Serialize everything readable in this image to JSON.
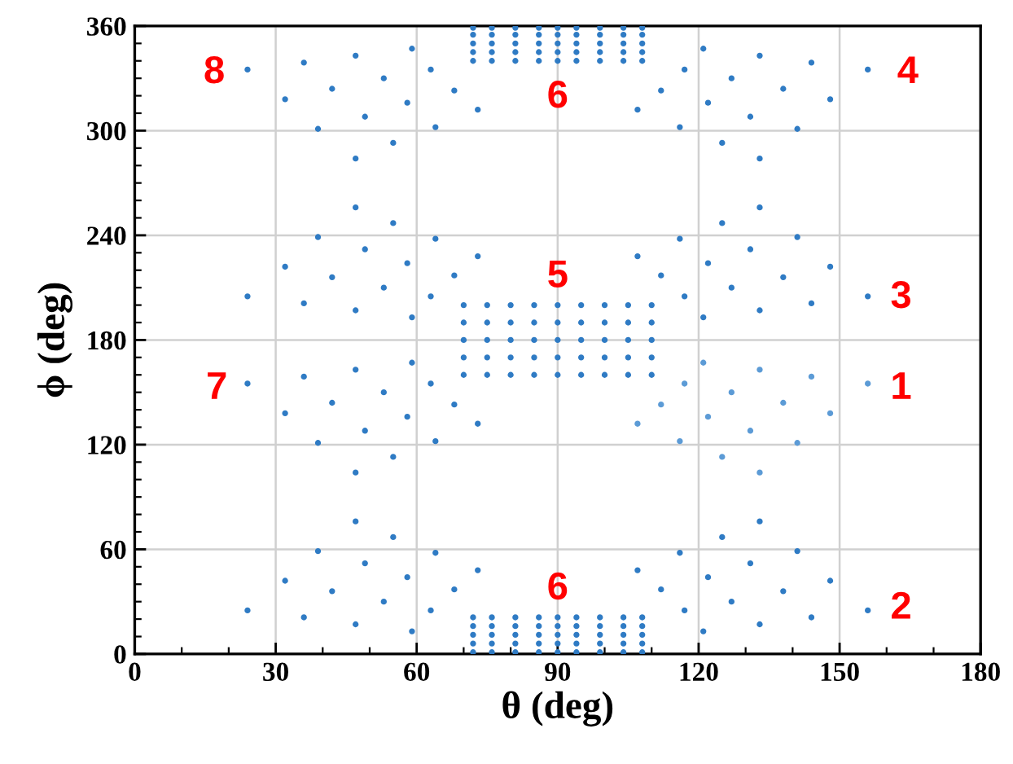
{
  "chart_data": {
    "type": "scatter",
    "xlabel": "θ (deg)",
    "ylabel": "ϕ (deg)",
    "xlim": [
      0,
      180
    ],
    "ylim": [
      0,
      360
    ],
    "xticks": [
      0,
      {
        "value": 10,
        "label": null
      },
      {
        "value": 20,
        "label": null
      },
      30,
      {
        "value": 40,
        "label": null
      },
      {
        "value": 50,
        "label": null
      },
      60,
      {
        "value": 70,
        "label": null
      },
      {
        "value": 80,
        "label": null
      },
      90,
      {
        "value": 100,
        "label": null
      },
      {
        "value": 110,
        "label": null
      },
      120,
      {
        "value": 130,
        "label": null
      },
      {
        "value": 140,
        "label": null
      },
      150,
      {
        "value": 160,
        "label": null
      },
      {
        "value": 170,
        "label": null
      },
      180
    ],
    "yticks": [
      0,
      {
        "value": 10,
        "label": null
      },
      {
        "value": 20,
        "label": null
      },
      {
        "value": 30,
        "label": null
      },
      {
        "value": 40,
        "label": null
      },
      {
        "value": 50,
        "label": null
      },
      60,
      {
        "value": 70,
        "label": null
      },
      {
        "value": 80,
        "label": null
      },
      {
        "value": 90,
        "label": null
      },
      {
        "value": 100,
        "label": null
      },
      {
        "value": 110,
        "label": null
      },
      120,
      {
        "value": 130,
        "label": null
      },
      {
        "value": 140,
        "label": null
      },
      {
        "value": 150,
        "label": null
      },
      {
        "value": 160,
        "label": null
      },
      {
        "value": 170,
        "label": null
      },
      180,
      {
        "value": 190,
        "label": null
      },
      {
        "value": 200,
        "label": null
      },
      {
        "value": 210,
        "label": null
      },
      {
        "value": 220,
        "label": null
      },
      {
        "value": 230,
        "label": null
      },
      240,
      {
        "value": 250,
        "label": null
      },
      {
        "value": 260,
        "label": null
      },
      {
        "value": 270,
        "label": null
      },
      {
        "value": 280,
        "label": null
      },
      {
        "value": 290,
        "label": null
      },
      300,
      {
        "value": 310,
        "label": null
      },
      {
        "value": 320,
        "label": null
      },
      {
        "value": 330,
        "label": null
      },
      {
        "value": 340,
        "label": null
      },
      {
        "value": 350,
        "label": null
      },
      360
    ],
    "grid": true,
    "legend": false,
    "marker": "circle",
    "series": [
      {
        "color": "#2f7bc4",
        "x": [
          24,
          36,
          47,
          59,
          32,
          42,
          53,
          63,
          39,
          49,
          58,
          68,
          47,
          55,
          64,
          73
        ],
        "values": [
          335,
          339,
          343,
          347,
          318,
          324,
          330,
          335,
          301,
          308,
          316,
          323,
          284,
          293,
          302,
          312
        ]
      },
      {
        "color": "#2f7bc4",
        "x": [
          24,
          36,
          47,
          59,
          32,
          42,
          53,
          63,
          39,
          49,
          58,
          68,
          47,
          55,
          64,
          73
        ],
        "values": [
          205,
          201,
          197,
          193,
          222,
          216,
          210,
          205,
          239,
          232,
          224,
          217,
          256,
          247,
          238,
          228
        ]
      },
      {
        "color": "#2f7bc4",
        "x": [
          24,
          36,
          47,
          59,
          32,
          42,
          53,
          63,
          39,
          49,
          58,
          68,
          47,
          55,
          64,
          73
        ],
        "values": [
          155,
          159,
          163,
          167,
          138,
          144,
          150,
          155,
          121,
          128,
          136,
          143,
          104,
          113,
          122,
          132
        ]
      },
      {
        "color": "#2f7bc4",
        "x": [
          24,
          36,
          47,
          59,
          32,
          42,
          53,
          63,
          39,
          49,
          58,
          68,
          47,
          55,
          64,
          73
        ],
        "values": [
          25,
          21,
          17,
          13,
          42,
          36,
          30,
          25,
          59,
          52,
          44,
          37,
          76,
          67,
          58,
          48
        ]
      },
      {
        "color": "#2f7bc4",
        "x": [
          156,
          144,
          133,
          121,
          148,
          138,
          127,
          117,
          141,
          131,
          122,
          112,
          133,
          125,
          116,
          107
        ],
        "values": [
          335,
          339,
          343,
          347,
          318,
          324,
          330,
          335,
          301,
          308,
          316,
          323,
          284,
          293,
          302,
          312
        ]
      },
      {
        "color": "#2f7bc4",
        "x": [
          156,
          144,
          133,
          121,
          148,
          138,
          127,
          117,
          141,
          131,
          122,
          112,
          133,
          125,
          116,
          107
        ],
        "values": [
          205,
          201,
          197,
          193,
          222,
          216,
          210,
          205,
          239,
          232,
          224,
          217,
          256,
          247,
          238,
          228
        ]
      },
      {
        "color": "#5c9bd6",
        "x": [
          156,
          144,
          133,
          121,
          148,
          138,
          127,
          117,
          141,
          131,
          122,
          112,
          133,
          125,
          116,
          107
        ],
        "values": [
          155,
          159,
          163,
          167,
          138,
          144,
          150,
          155,
          121,
          128,
          136,
          143,
          104,
          113,
          122,
          132
        ]
      },
      {
        "color": "#2f7bc4",
        "x": [
          156,
          144,
          133,
          121,
          148,
          138,
          127,
          117,
          141,
          131,
          122,
          112,
          133,
          125,
          116,
          107
        ],
        "values": [
          25,
          21,
          17,
          13,
          42,
          36,
          30,
          25,
          59,
          52,
          44,
          37,
          76,
          67,
          58,
          48
        ]
      },
      {
        "color": "#2f7bc4",
        "x": [
          70,
          75,
          80,
          85,
          90,
          95,
          100,
          105,
          110,
          70,
          75,
          80,
          85,
          90,
          95,
          100,
          105,
          110,
          70,
          75,
          80,
          85,
          90,
          95,
          100,
          105,
          110,
          70,
          75,
          80,
          85,
          90,
          95,
          100,
          105,
          110,
          70,
          75,
          80,
          85,
          90,
          95,
          100,
          105,
          110
        ],
        "values": [
          160,
          160,
          160,
          160,
          160,
          160,
          160,
          160,
          160,
          170,
          170,
          170,
          170,
          170,
          170,
          170,
          170,
          170,
          180,
          180,
          180,
          180,
          180,
          180,
          180,
          180,
          180,
          190,
          190,
          190,
          190,
          190,
          190,
          190,
          190,
          190,
          200,
          200,
          200,
          200,
          200,
          200,
          200,
          200,
          200
        ]
      },
      {
        "color": "#2f7bc4",
        "x": [
          72,
          76,
          81,
          86,
          90,
          94,
          99,
          104,
          108,
          72,
          76,
          81,
          86,
          90,
          94,
          99,
          104,
          108,
          72,
          76,
          81,
          86,
          90,
          94,
          99,
          104,
          108,
          72,
          76,
          81,
          86,
          90,
          94,
          99,
          104,
          108,
          72,
          76,
          81,
          86,
          90,
          94,
          99,
          104,
          108
        ],
        "values": [
          1,
          1,
          1,
          1,
          1,
          1,
          1,
          1,
          1,
          6,
          6,
          6,
          6,
          6,
          6,
          6,
          6,
          6,
          11,
          11,
          11,
          11,
          11,
          11,
          11,
          11,
          11,
          16,
          16,
          16,
          16,
          16,
          16,
          16,
          16,
          16,
          21,
          21,
          21,
          21,
          21,
          21,
          21,
          21,
          21
        ]
      },
      {
        "color": "#2f7bc4",
        "x": [
          72,
          76,
          81,
          86,
          90,
          94,
          99,
          104,
          108,
          72,
          76,
          81,
          86,
          90,
          94,
          99,
          104,
          108,
          72,
          76,
          81,
          86,
          90,
          94,
          99,
          104,
          108,
          72,
          76,
          81,
          86,
          90,
          94,
          99,
          104,
          108,
          72,
          76,
          81,
          86,
          90,
          94,
          99,
          104,
          108
        ],
        "values": [
          340,
          340,
          340,
          340,
          340,
          340,
          340,
          340,
          340,
          345,
          345,
          345,
          345,
          345,
          345,
          345,
          345,
          345,
          350,
          350,
          350,
          350,
          350,
          350,
          350,
          350,
          350,
          355,
          355,
          355,
          355,
          355,
          355,
          355,
          355,
          355,
          359,
          359,
          359,
          359,
          359,
          359,
          359,
          359,
          359
        ]
      }
    ],
    "annotations": [
      "8",
      "6",
      "4",
      "5",
      "3",
      "7",
      "1",
      "6",
      "2"
    ]
  }
}
